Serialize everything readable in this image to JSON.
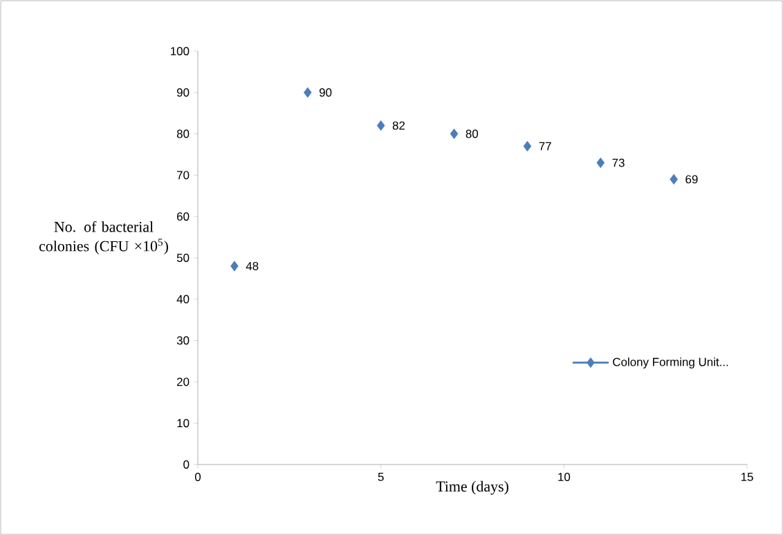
{
  "chart_data": {
    "type": "scatter",
    "xlabel": "Time  (days)",
    "ylabel": "No. of bacterial colonies (CFU ×10$^{5}$)",
    "x": [
      1,
      3,
      5,
      7,
      9,
      11,
      13
    ],
    "series": [
      {
        "name": "Colony Forming Unit...",
        "color": "#4a7ebb",
        "values": [
          48,
          90,
          82,
          80,
          77,
          73,
          69
        ]
      }
    ],
    "xlim": [
      0,
      15
    ],
    "xticks": [
      0,
      5,
      10,
      15
    ],
    "ylim": [
      0,
      100
    ],
    "yticks": [
      0,
      10,
      20,
      30,
      40,
      50,
      60,
      70,
      80,
      90,
      100
    ],
    "data_labels": true,
    "marker": "diamond",
    "legend": "bottom right",
    "grid": false
  }
}
